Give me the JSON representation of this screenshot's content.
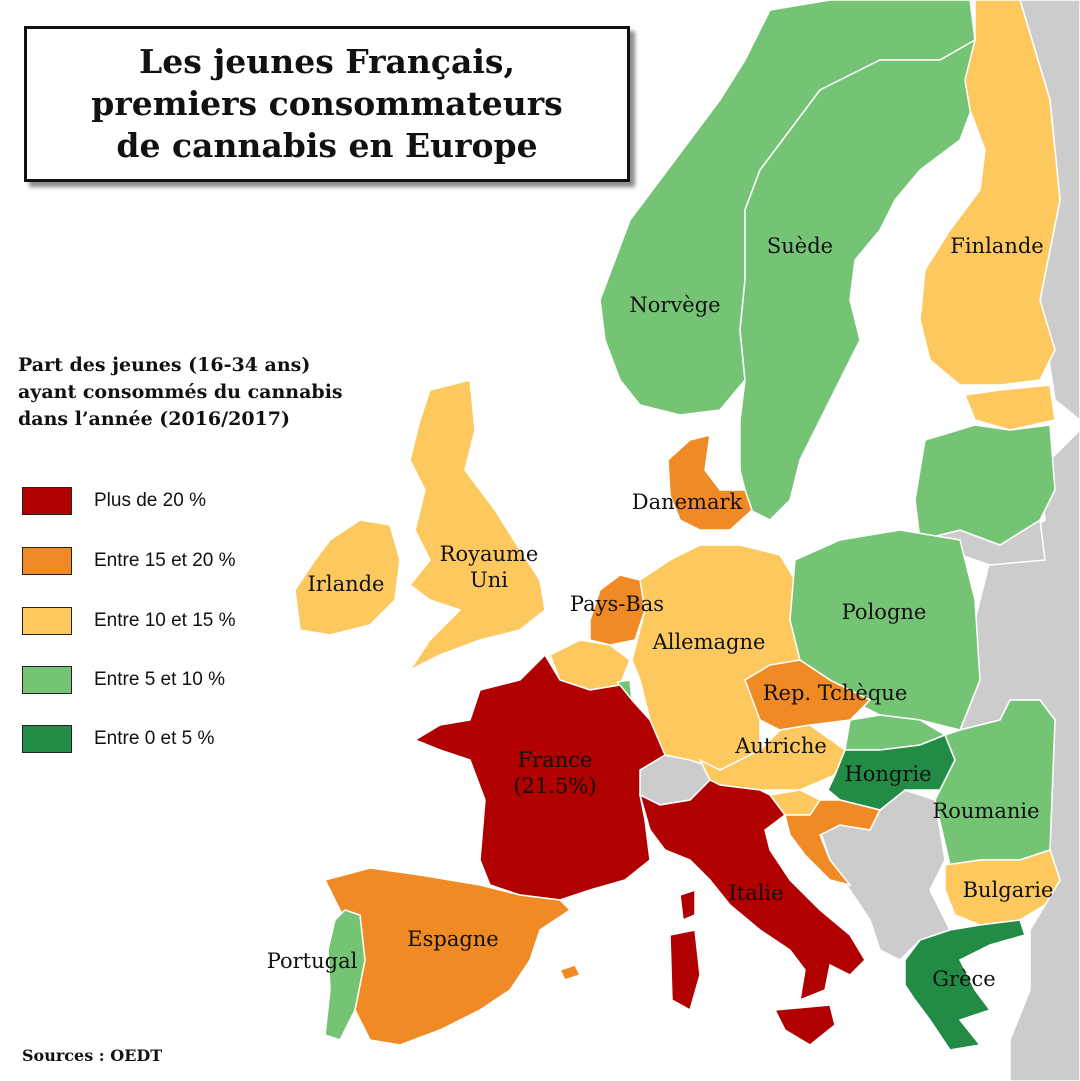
{
  "title": {
    "lines": [
      "Les jeunes Français,",
      "premiers consommateurs",
      "de cannabis en Europe"
    ]
  },
  "legend": {
    "title_lines": [
      "Part des jeunes (16-34 ans)",
      "ayant consommés du cannabis",
      "dans l’année (2016/2017)"
    ],
    "items": [
      {
        "label": "Plus de  20 %",
        "color": "#b00000"
      },
      {
        "label": "Entre 15 et 20 %",
        "color": "#f08a24"
      },
      {
        "label": "Entre 10 et 15 %",
        "color": "#fdc95e"
      },
      {
        "label": "Entre 5 et 10 %",
        "color": "#75c475"
      },
      {
        "label": "Entre 0 et 5 %",
        "color": "#228b45"
      }
    ]
  },
  "colors": {
    "no_data": "#cccccc",
    "sea": "#ffffff"
  },
  "countries": {
    "norvege": {
      "name": "Norvège",
      "category": "Entre 5 et 10 %"
    },
    "suede": {
      "name": "Suède",
      "category": "Entre 5 et 10 %"
    },
    "finlande": {
      "name": "Finlande",
      "category": "Entre 10 et 15 %"
    },
    "danemark": {
      "name": "Danemark",
      "category": "Entre 15 et 20 %"
    },
    "royaume_uni": {
      "name": "Royaume\nUni",
      "category": "Entre 10 et 15 %"
    },
    "irlande": {
      "name": "Irlande",
      "category": "Entre 10 et 15 %"
    },
    "pays_bas": {
      "name": "Pays-Bas",
      "category": "Entre 15 et 20 %"
    },
    "allemagne": {
      "name": "Allemagne",
      "category": "Entre 10 et 15 %"
    },
    "pologne": {
      "name": "Pologne",
      "category": "Entre 5 et 10 %"
    },
    "rep_tcheque": {
      "name": "Rep. Tchèque",
      "category": "Entre 15 et 20 %"
    },
    "autriche": {
      "name": "Autriche",
      "category": "Entre 10 et 15 %"
    },
    "hongrie": {
      "name": "Hongrie",
      "category": "Entre 0 et 5 %"
    },
    "roumanie": {
      "name": "Roumanie",
      "category": "Entre 5 et 10 %"
    },
    "france": {
      "name": "France\n(21.5%)",
      "category": "Plus de  20 %"
    },
    "italie": {
      "name": "Italie",
      "category": "Plus de  20 %"
    },
    "espagne": {
      "name": "Espagne",
      "category": "Entre 15 et 20 %"
    },
    "portugal": {
      "name": "Portugal",
      "category": "Entre 5 et 10 %"
    },
    "bulgarie": {
      "name": "Bulgarie",
      "category": "Entre 10 et 15 %"
    },
    "grece": {
      "name": "Grèce",
      "category": "Entre 0 et 5 %"
    }
  },
  "source": "Sources : OEDT"
}
